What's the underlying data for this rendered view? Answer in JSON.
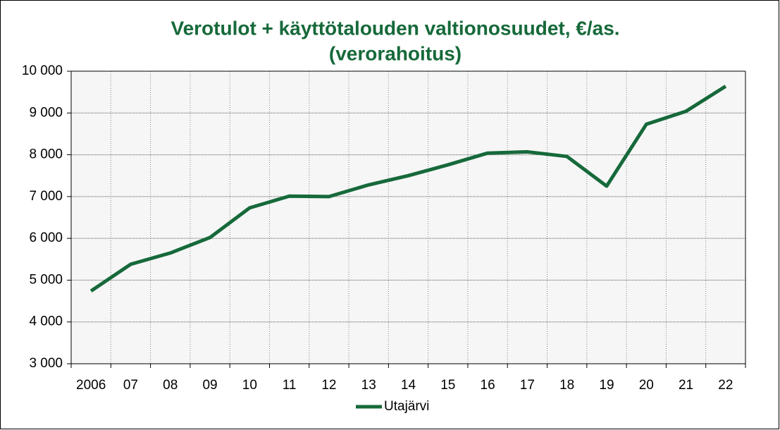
{
  "chart_data": {
    "type": "line",
    "title": [
      "Verotulot + käyttötalouden valtionosuudet, €/as.",
      "(verorahoitus)"
    ],
    "categories": [
      "2006",
      "07",
      "08",
      "09",
      "10",
      "11",
      "12",
      "13",
      "14",
      "15",
      "16",
      "17",
      "18",
      "19",
      "20",
      "21",
      "22"
    ],
    "series": [
      {
        "name": "Utajärvi",
        "color": "#16693a",
        "values": [
          4740,
          5380,
          5650,
          6020,
          6730,
          7010,
          7000,
          7280,
          7500,
          7760,
          8040,
          8070,
          7960,
          7250,
          8730,
          9040,
          9640
        ]
      }
    ],
    "ylim": [
      3000,
      10000
    ],
    "yticks": [
      {
        "value": 3000,
        "label": "3 000"
      },
      {
        "value": 4000,
        "label": "4 000"
      },
      {
        "value": 5000,
        "label": "5 000"
      },
      {
        "value": 6000,
        "label": "6 000"
      },
      {
        "value": 7000,
        "label": "7 000"
      },
      {
        "value": 8000,
        "label": "8 000"
      },
      {
        "value": 9000,
        "label": "9 000"
      },
      {
        "value": 10000,
        "label": "10 000"
      }
    ],
    "grid": true,
    "legend": "bottom"
  }
}
